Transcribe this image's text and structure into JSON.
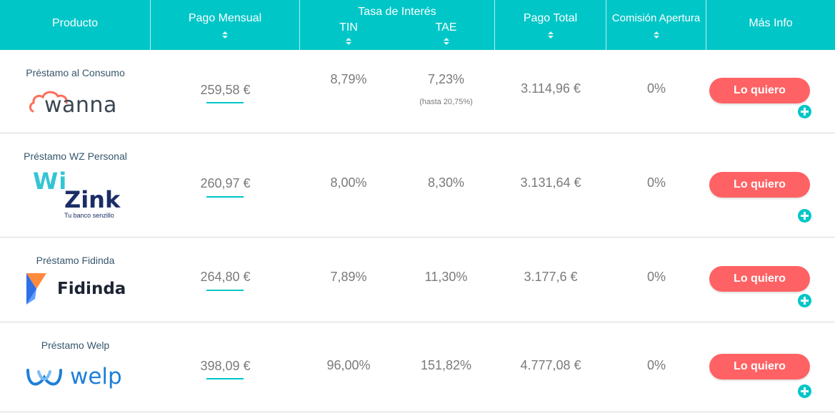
{
  "header": {
    "producto": "Producto",
    "pago_mensual": "Pago Mensual",
    "tasa": "Tasa de Interés",
    "tin": "TIN",
    "tae": "TAE",
    "pago_total": "Pago Total",
    "comision": "Comisión Apertura",
    "mas_info": "Más Info"
  },
  "colors": {
    "header_bg": "#00c6c8",
    "button": "#ff6264",
    "accent": "#00c6c8"
  },
  "rows": [
    {
      "product": "Préstamo al Consumo",
      "logo_text": "wanna",
      "monthly": "259,58 €",
      "tin": "8,79%",
      "tae": "7,23%",
      "tae_note": "(hasta 20,75%)",
      "total": "3.114,96 €",
      "fee": "0%",
      "button": "Lo quiero",
      "logo_icon": "cloud-logo-icon"
    },
    {
      "product": "Préstamo WZ Personal",
      "logo_text_1": "Wi",
      "logo_text_2": "Zink",
      "logo_tagline": "Tu banco senzillo",
      "monthly": "260,97 €",
      "tin": "8,00%",
      "tae": "8,30%",
      "total": "3.131,64 €",
      "fee": "0%",
      "button": "Lo quiero"
    },
    {
      "product": "Préstamo Fidinda",
      "logo_text": "Fidinda",
      "monthly": "264,80 €",
      "tin": "7,89%",
      "tae": "11,30%",
      "total": "3.177,6 €",
      "fee": "0%",
      "button": "Lo quiero",
      "logo_icon": "fidinda-mark-icon"
    },
    {
      "product": "Préstamo Welp",
      "logo_text": "welp",
      "monthly": "398,09 €",
      "tin": "96,00%",
      "tae": "151,82%",
      "total": "4.777,08 €",
      "fee": "0%",
      "button": "Lo quiero",
      "logo_icon": "welp-mark-icon"
    }
  ]
}
